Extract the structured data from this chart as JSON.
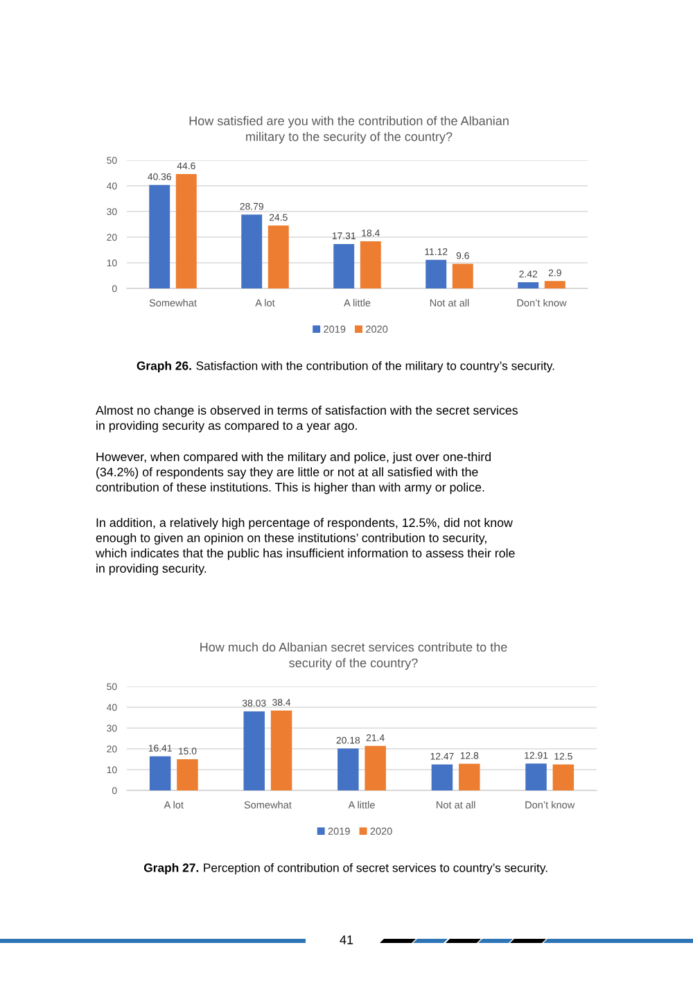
{
  "chart_data": [
    {
      "type": "bar",
      "title": "How satisfied are you with the contribution of the Albanian\nmilitary to the security of the country?",
      "categories": [
        "Somewhat",
        "A lot",
        "A little",
        "Not at all",
        "Don’t know"
      ],
      "series": [
        {
          "name": "2019",
          "color": "#4472c4",
          "values": [
            40.36,
            28.79,
            17.31,
            11.12,
            2.42
          ],
          "value_labels": [
            "40.36",
            "28.79",
            "17.31",
            "11.12",
            "2.42"
          ]
        },
        {
          "name": "2020",
          "color": "#ed7d31",
          "values": [
            44.6,
            24.5,
            18.4,
            9.6,
            2.9
          ],
          "value_labels": [
            "44.6",
            "24.5",
            "18.4",
            "9.6",
            "2.9"
          ]
        }
      ],
      "ylim": [
        0,
        50
      ],
      "yticks": [
        0,
        10,
        20,
        30,
        40,
        50
      ],
      "grid": "y",
      "legend": "bottom",
      "annotations": [
        "Graph 26.",
        "Satisfaction with the contribution of the military to country’s security."
      ]
    },
    {
      "type": "other",
      "annotations": [
        "Almost no change is observed in terms of satisfaction with the secret services\nin providing security as compared to a year ago.",
        "However, when compared with the military and police, just over one-third\n(34.2%) of respondents say they are little or not at all satisfied with the\ncontribution of these institutions. This is higher than with army or police.",
        "In addition, a relatively high percentage of respondents, 12.5%, did not know\nenough to given an opinion on these institutions’ contribution to security,\nwhich indicates that the public has insufficient information to assess their role\nin providing security."
      ]
    },
    {
      "type": "bar",
      "title": "How much do Albanian secret services contribute to the\nsecurity of the country?",
      "categories": [
        "A lot",
        "Somewhat",
        "A little",
        "Not at all",
        "Don’t know"
      ],
      "series": [
        {
          "name": "2019",
          "color": "#4472c4",
          "values": [
            16.41,
            38.03,
            20.18,
            12.47,
            12.91
          ],
          "value_labels": [
            "16.41",
            "38.03",
            "20.18",
            "12.47",
            "12.91"
          ]
        },
        {
          "name": "2020",
          "color": "#ed7d31",
          "values": [
            15.0,
            38.4,
            21.4,
            12.8,
            12.5
          ],
          "value_labels": [
            "15.0",
            "38.4",
            "21.4",
            "12.8",
            "12.5"
          ]
        }
      ],
      "ylim": [
        0,
        50
      ],
      "yticks": [
        0,
        10,
        20,
        30,
        40,
        50
      ],
      "grid": "y",
      "legend": "bottom",
      "annotations": [
        "Graph 27.",
        "Perception of contribution of secret services to country’s security.",
        "41"
      ]
    }
  ]
}
